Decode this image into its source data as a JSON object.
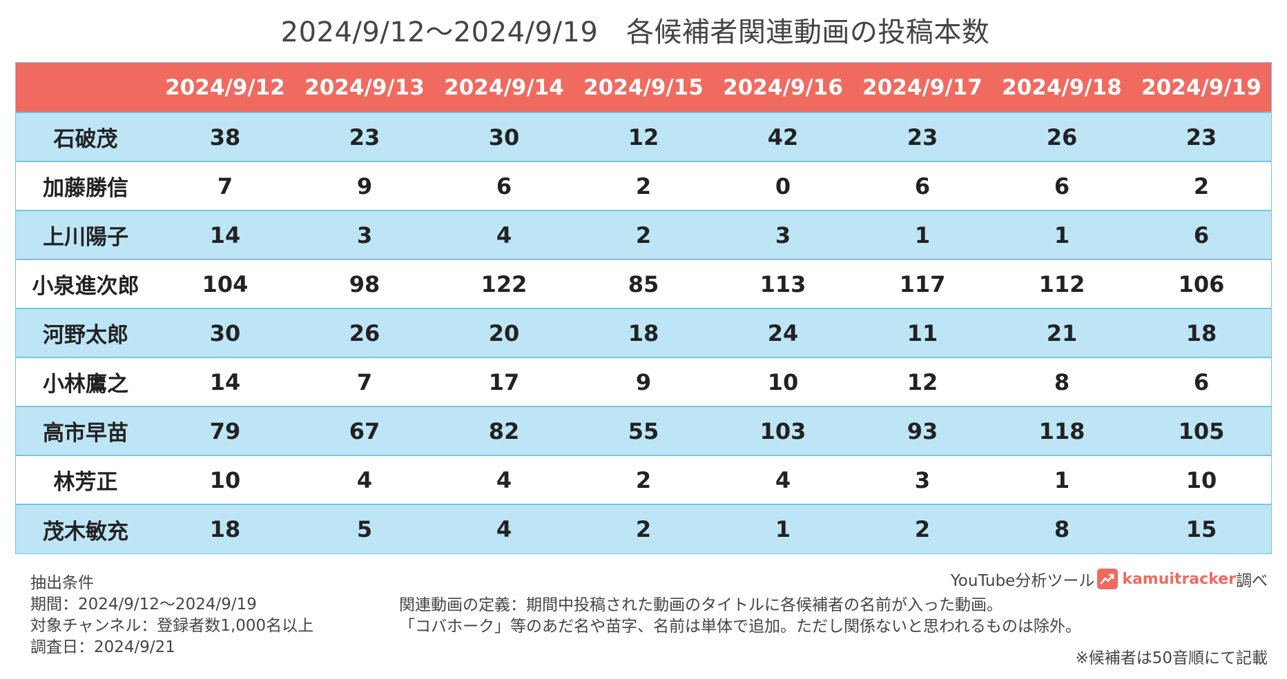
{
  "page": {
    "title": "2024/9/12〜2024/9/19　各候補者関連動画の投稿本数"
  },
  "chart_data": {
    "type": "table",
    "title": "2024/9/12〜2024/9/19　各候補者関連動画の投稿本数",
    "header_corner": "",
    "columns": [
      "2024/9/12",
      "2024/9/13",
      "2024/9/14",
      "2024/9/15",
      "2024/9/16",
      "2024/9/17",
      "2024/9/18",
      "2024/9/19"
    ],
    "rows": [
      {
        "name": "石破茂",
        "values": [
          38,
          23,
          30,
          12,
          42,
          23,
          26,
          23
        ]
      },
      {
        "name": "加藤勝信",
        "values": [
          7,
          9,
          6,
          2,
          0,
          6,
          6,
          2
        ]
      },
      {
        "name": "上川陽子",
        "values": [
          14,
          3,
          4,
          2,
          3,
          1,
          1,
          6
        ]
      },
      {
        "name": "小泉進次郎",
        "values": [
          104,
          98,
          122,
          85,
          113,
          117,
          112,
          106
        ]
      },
      {
        "name": "河野太郎",
        "values": [
          30,
          26,
          20,
          18,
          24,
          11,
          21,
          18
        ]
      },
      {
        "name": "小林鷹之",
        "values": [
          14,
          7,
          17,
          9,
          10,
          12,
          8,
          6
        ]
      },
      {
        "name": "高市早苗",
        "values": [
          79,
          67,
          82,
          55,
          103,
          93,
          118,
          105
        ]
      },
      {
        "name": "林芳正",
        "values": [
          10,
          4,
          4,
          2,
          4,
          3,
          1,
          10
        ]
      },
      {
        "name": "茂木敏充",
        "values": [
          18,
          5,
          4,
          2,
          1,
          2,
          8,
          15
        ]
      }
    ]
  },
  "colors": {
    "header_bg": "#f06a60",
    "row_alt_bg": "#bde5f5",
    "row_bg": "#ffffff",
    "border": "#78c3dd"
  },
  "notes": {
    "conditions_heading": "抽出条件",
    "period": "期間：2024/9/12〜2024/9/19",
    "channel": "対象チャンネル：登録者数1,000名以上",
    "survey_date": "調査日：2024/9/21",
    "definition_line1": "関連動画の定義：期間中投稿された動画のタイトルに各候補者の名前が入った動画。",
    "definition_line2": "「コバホーク」等のあだ名や苗字、名前は単体で追加。ただし関係ないと思われるものは除外。",
    "footnote": "※候補者は50音順にて記載"
  },
  "credit": {
    "prefix": "YouTube分析ツール",
    "brand": "kamuitracker",
    "suffix": "調べ",
    "logo_icon": "trend-chart-icon"
  }
}
